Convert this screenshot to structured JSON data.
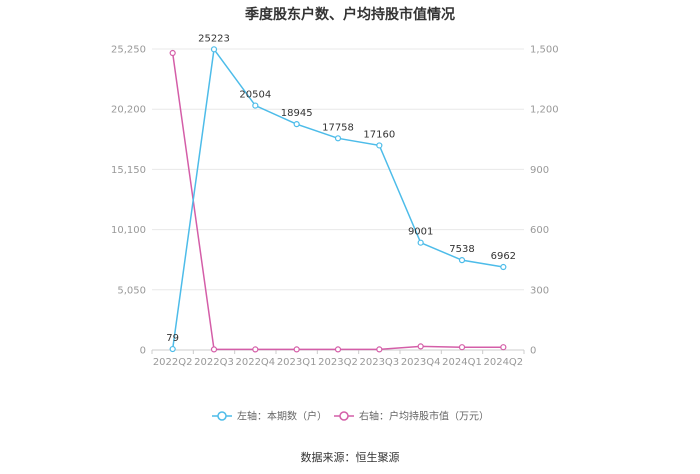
{
  "chart_data": {
    "type": "line",
    "title": "季度股东户数、户均持股市值情况",
    "categories": [
      "2022Q2",
      "2022Q3",
      "2022Q4",
      "2023Q1",
      "2023Q2",
      "2023Q3",
      "2023Q4",
      "2024Q1",
      "2024Q2"
    ],
    "left_axis": {
      "ylim": [
        0,
        25250
      ],
      "ticks": [
        0,
        5050,
        10100,
        15150,
        20200,
        25250
      ],
      "tick_labels": [
        "0",
        "5,050",
        "10,100",
        "15,150",
        "20,200",
        "25,250"
      ]
    },
    "right_axis": {
      "ylim": [
        0,
        1500
      ],
      "ticks": [
        0,
        300,
        600,
        900,
        1200,
        1500
      ],
      "tick_labels": [
        "0",
        "300",
        "600",
        "900",
        "1,200",
        "1,500"
      ]
    },
    "series": [
      {
        "name": "左轴：本期数（户）",
        "axis": "left",
        "color": "#4dbce9",
        "values": [
          79,
          25223,
          20504,
          18945,
          17758,
          17160,
          9001,
          7538,
          6962
        ],
        "labels": [
          "79",
          "25223",
          "20504",
          "18945",
          "17758",
          "17160",
          "9001",
          "7538",
          "6962"
        ]
      },
      {
        "name": "右轴：户均持股市值（万元）",
        "axis": "right",
        "color": "#d45ea8",
        "values": [
          1480,
          3,
          3,
          3,
          3,
          3,
          18,
          14,
          14
        ]
      }
    ],
    "legend_position": "bottom",
    "grid": true
  },
  "source_text": "数据来源：恒生聚源"
}
